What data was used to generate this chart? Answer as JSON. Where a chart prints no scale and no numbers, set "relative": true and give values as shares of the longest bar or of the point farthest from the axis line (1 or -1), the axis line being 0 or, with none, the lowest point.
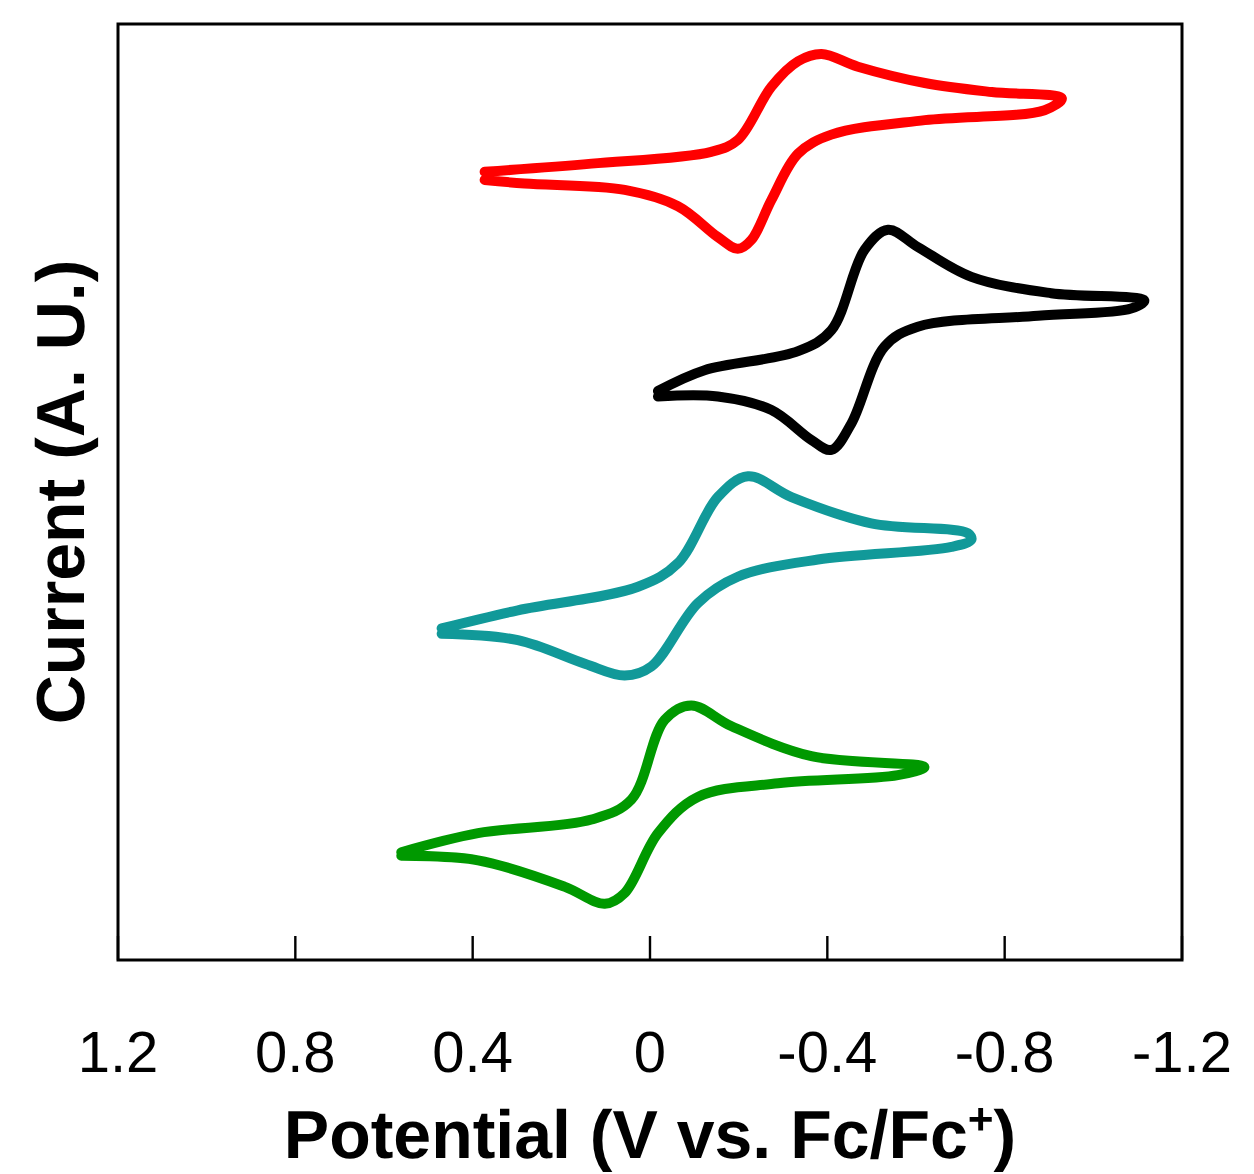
{
  "chart_data": {
    "type": "line",
    "xlabel": "Potential (V vs. Fc/Fc$^{+}$)",
    "ylabel": "Current (A. U.)",
    "xlim": [
      1.2,
      -1.2
    ],
    "xticks": [
      1.2,
      0.8,
      0.4,
      0,
      -0.4,
      -0.8,
      -1.2
    ],
    "relative": true,
    "series": [
      {
        "color": "#ff0000",
        "x": [
          0.373,
          0.132,
          -0.138,
          -0.198,
          -0.274,
          -0.334,
          -0.387,
          -0.469,
          -0.62,
          -0.771,
          -0.929,
          -0.89,
          -0.62,
          -0.409,
          -0.334,
          -0.274,
          -0.229,
          -0.198,
          -0.153,
          -0.063,
          0.057,
          0.283,
          0.373
        ],
        "values": [
          0.87,
          0.879,
          0.892,
          0.905,
          0.964,
          0.992,
          1,
          0.986,
          0.968,
          0.958,
          0.951,
          0.938,
          0.927,
          0.911,
          0.89,
          0.839,
          0.795,
          0.785,
          0.798,
          0.832,
          0.85,
          0.857,
          0.861
        ]
      },
      {
        "color": "#000000",
        "x": [
          -0.018,
          -0.123,
          -0.334,
          -0.409,
          -0.484,
          -0.537,
          -0.604,
          -0.725,
          -0.905,
          -1.115,
          -1.085,
          -0.875,
          -0.604,
          -0.529,
          -0.454,
          -0.409,
          -0.364,
          -0.274,
          -0.153,
          -0.018
        ],
        "values": [
          0.628,
          0.651,
          0.672,
          0.695,
          0.784,
          0.806,
          0.787,
          0.754,
          0.736,
          0.728,
          0.719,
          0.711,
          0.699,
          0.677,
          0.592,
          0.563,
          0.574,
          0.607,
          0.622,
          0.622
        ]
      },
      {
        "color": "#119999",
        "x": [
          0.47,
          0.298,
          0.027,
          -0.063,
          -0.153,
          -0.221,
          -0.319,
          -0.499,
          -0.717,
          -0.725,
          -0.68,
          -0.379,
          -0.198,
          -0.108,
          -0.003,
          0.057,
          0.147,
          0.298,
          0.47
        ],
        "values": [
          0.366,
          0.386,
          0.412,
          0.438,
          0.511,
          0.534,
          0.511,
          0.482,
          0.471,
          0.464,
          0.456,
          0.442,
          0.423,
          0.394,
          0.324,
          0.314,
          0.327,
          0.353,
          0.36
        ]
      },
      {
        "color": "#009900",
        "x": [
          0.561,
          0.388,
          0.132,
          0.042,
          -0.033,
          -0.093,
          -0.184,
          -0.364,
          -0.619,
          -0.559,
          -0.289,
          -0.108,
          -0.018,
          0.057,
          0.102,
          0.193,
          0.388,
          0.561
        ],
        "values": [
          0.119,
          0.14,
          0.155,
          0.177,
          0.265,
          0.281,
          0.258,
          0.225,
          0.213,
          0.204,
          0.195,
          0.18,
          0.14,
          0.074,
          0.062,
          0.081,
          0.11,
          0.115
        ]
      }
    ]
  }
}
